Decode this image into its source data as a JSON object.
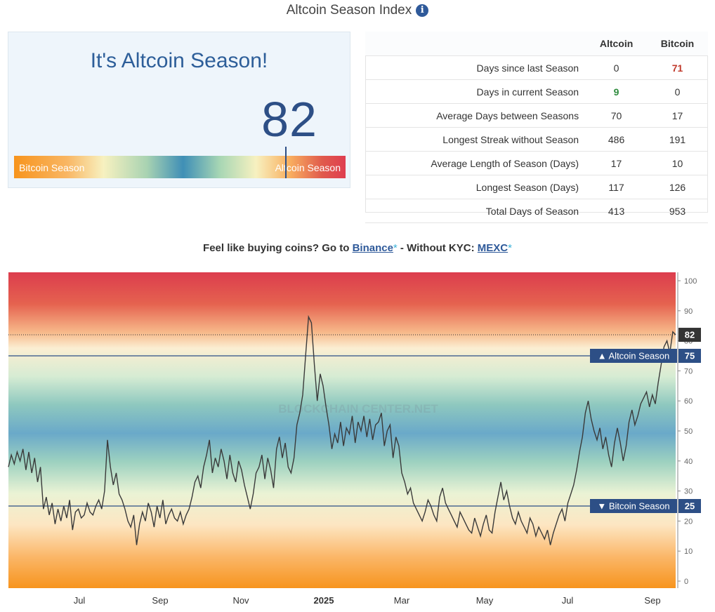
{
  "header": {
    "title": "Altcoin Season Index",
    "info_icon": "info-icon"
  },
  "season_card": {
    "heading": "It's Altcoin Season!",
    "value": "82",
    "index_value": 82,
    "bar_left_label": "Bitcoin Season",
    "bar_right_label": "Altcoin Season"
  },
  "stats": {
    "columns": [
      "",
      "Altcoin",
      "Bitcoin"
    ],
    "rows": [
      {
        "label": "Days since last Season",
        "altcoin": "0",
        "bitcoin": "71"
      },
      {
        "label": "Days in current Season",
        "altcoin": "9",
        "bitcoin": "0"
      },
      {
        "label": "Average Days between Seasons",
        "altcoin": "70",
        "bitcoin": "17"
      },
      {
        "label": "Longest Streak without Season",
        "altcoin": "486",
        "bitcoin": "191"
      },
      {
        "label": "Average Length of Season (Days)",
        "altcoin": "17",
        "bitcoin": "10"
      },
      {
        "label": "Longest Season (Days)",
        "altcoin": "117",
        "bitcoin": "126"
      },
      {
        "label": "Total Days of Season",
        "altcoin": "413",
        "bitcoin": "953"
      }
    ]
  },
  "promo": {
    "prefix": "Feel like buying coins? Go to ",
    "link1": "Binance",
    "star1": "*",
    "middle": " - Without KYC: ",
    "link2": "MEXC",
    "star2": "*"
  },
  "colors": {
    "accent": "#2d4f86",
    "heading": "#2d5e99",
    "red": "#c0392b",
    "green": "#2e8b3d",
    "label_bg": "#2d4f86"
  },
  "chart_data": {
    "type": "line",
    "watermark": "BLOCKCHAIN CENTER.NET",
    "ylim": [
      0,
      100
    ],
    "yticks": [
      0,
      10,
      20,
      30,
      40,
      50,
      60,
      70,
      80,
      90,
      100
    ],
    "x_ticks": [
      "Jul",
      "Sep",
      "Nov",
      "2025",
      "Mar",
      "May",
      "Jul",
      "Sep"
    ],
    "last_value": 82,
    "thresholds": [
      {
        "label": "▲ Altcoin Season",
        "value": 75
      },
      {
        "label": "▼ Bitcoin Season",
        "value": 25
      }
    ],
    "series": [
      {
        "values": [
          38,
          42,
          39,
          43,
          40,
          44,
          37,
          43,
          36,
          41,
          33,
          38,
          24,
          28,
          22,
          26,
          19,
          24,
          20,
          25,
          21,
          27,
          17,
          23,
          24,
          21,
          22,
          26,
          23,
          22,
          25,
          27,
          24,
          30,
          47,
          38,
          32,
          36,
          29,
          27,
          24,
          20,
          18,
          22,
          12,
          19,
          23,
          20,
          26,
          23,
          18,
          25,
          21,
          27,
          19,
          22,
          24,
          21,
          20,
          23,
          19,
          22,
          24,
          28,
          33,
          35,
          31,
          38,
          42,
          47,
          36,
          41,
          38,
          44,
          40,
          34,
          42,
          36,
          33,
          40,
          37,
          32,
          28,
          24,
          29,
          36,
          38,
          42,
          34,
          41,
          37,
          31,
          44,
          48,
          41,
          46,
          38,
          36,
          41,
          52,
          56,
          62,
          75,
          88,
          86,
          72,
          60,
          69,
          65,
          58,
          52,
          44,
          49,
          46,
          53,
          45,
          51,
          49,
          55,
          46,
          53,
          50,
          55,
          48,
          54,
          47,
          52,
          53,
          56,
          45,
          50,
          52,
          41,
          48,
          45,
          36,
          33,
          29,
          31,
          26,
          24,
          22,
          20,
          23,
          27,
          25,
          22,
          20,
          28,
          31,
          26,
          24,
          22,
          20,
          18,
          23,
          21,
          19,
          17,
          16,
          21,
          18,
          15,
          19,
          22,
          17,
          16,
          23,
          28,
          33,
          27,
          30,
          25,
          21,
          19,
          23,
          20,
          18,
          16,
          21,
          19,
          15,
          18,
          16,
          14,
          17,
          12,
          16,
          19,
          22,
          24,
          20,
          26,
          29,
          32,
          37,
          43,
          48,
          56,
          60,
          54,
          50,
          47,
          51,
          44,
          48,
          42,
          38,
          46,
          51,
          46,
          40,
          45,
          53,
          57,
          52,
          55,
          59,
          61,
          63,
          58,
          62,
          59,
          66,
          72,
          78,
          80,
          76,
          83,
          82
        ]
      }
    ]
  }
}
